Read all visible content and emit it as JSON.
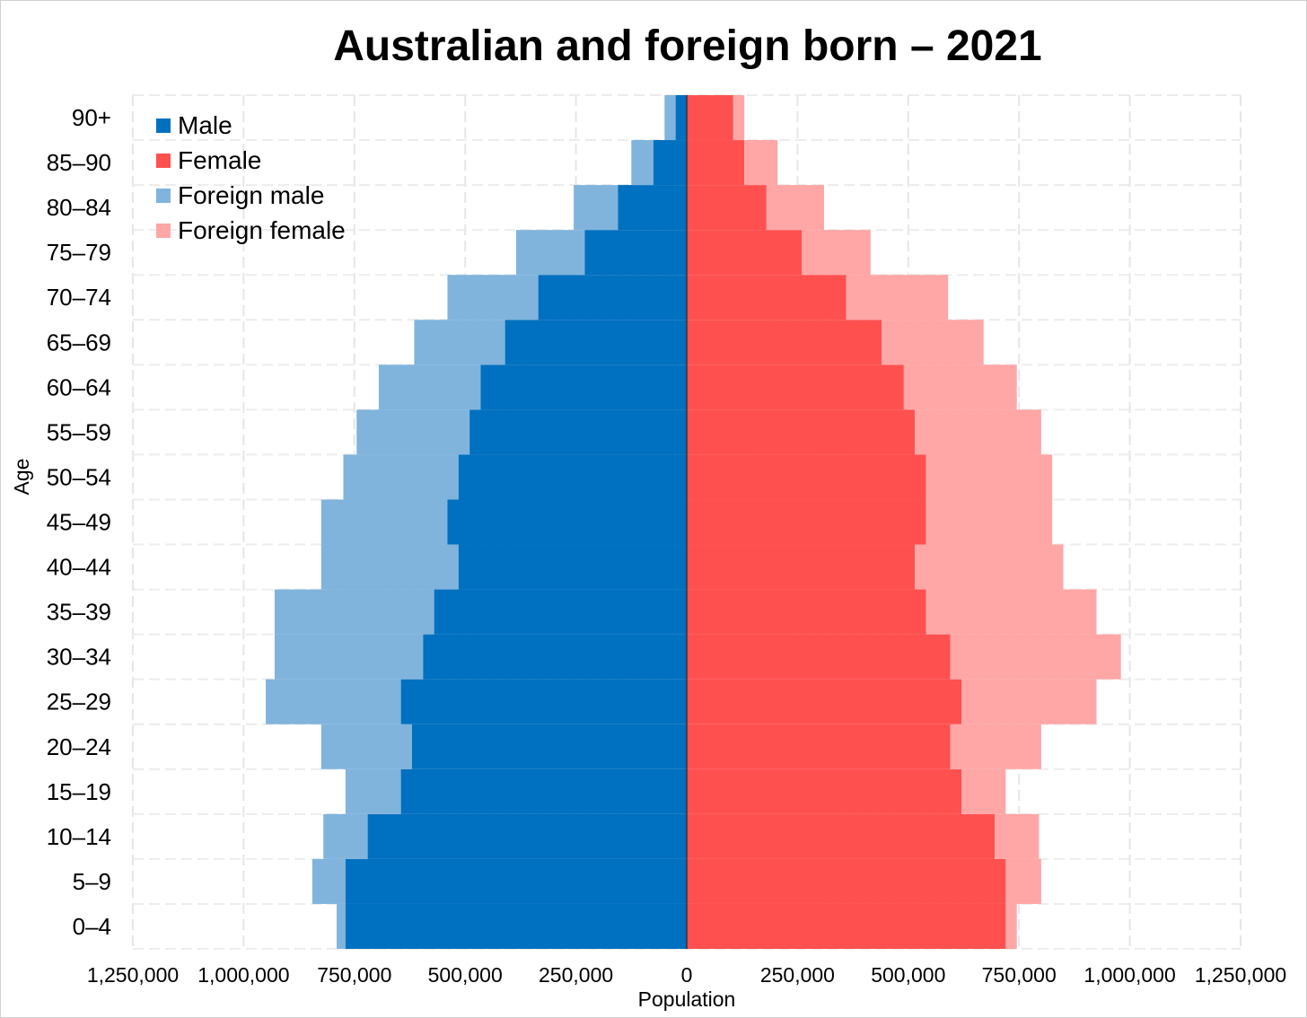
{
  "chart_data": {
    "type": "bar",
    "orientation": "horizontal-pyramid",
    "title": "Australian and foreign born – 2021",
    "xlabel": "Population",
    "ylabel": "Age",
    "xlim": [
      -1250000,
      1250000
    ],
    "x_ticks": [
      -1250000,
      -1000000,
      -750000,
      -500000,
      -250000,
      0,
      250000,
      500000,
      750000,
      1000000,
      1250000
    ],
    "x_tick_labels": [
      "1,250,000",
      "1,000,000",
      "750,000",
      "500,000",
      "250,000",
      "0",
      "250,000",
      "500,000",
      "750,000",
      "1,000,000",
      "1,250,000"
    ],
    "categories": [
      "0–4",
      "5–9",
      "10–14",
      "15–19",
      "20–24",
      "25–29",
      "30–34",
      "35–39",
      "40–44",
      "45–49",
      "50–54",
      "55–59",
      "60–64",
      "65–69",
      "70–74",
      "75–79",
      "80–84",
      "85–90",
      "90+"
    ],
    "grid": true,
    "legend_position": "top-left",
    "series": [
      {
        "name": "Male",
        "color": "#0070c0",
        "values": [
          770000,
          770000,
          720000,
          645000,
          620000,
          645000,
          595000,
          570000,
          515000,
          540000,
          515000,
          490000,
          465000,
          410000,
          335000,
          230000,
          155000,
          75000,
          25000
        ]
      },
      {
        "name": "Female",
        "color": "#ff5050",
        "values": [
          720000,
          720000,
          695000,
          620000,
          595000,
          620000,
          595000,
          540000,
          515000,
          540000,
          540000,
          515000,
          490000,
          440000,
          360000,
          260000,
          180000,
          130000,
          105000
        ]
      },
      {
        "name": "Foreign male",
        "color": "#80b4dc",
        "values": [
          20000,
          75000,
          100000,
          125000,
          205000,
          305000,
          335000,
          360000,
          310000,
          285000,
          260000,
          255000,
          230000,
          205000,
          205000,
          155000,
          100000,
          50000,
          25000
        ]
      },
      {
        "name": "Foreign female",
        "color": "#ffa6a6",
        "values": [
          25000,
          80000,
          100000,
          100000,
          205000,
          305000,
          385000,
          385000,
          335000,
          285000,
          285000,
          285000,
          255000,
          230000,
          230000,
          155000,
          130000,
          75000,
          25000
        ]
      }
    ]
  }
}
